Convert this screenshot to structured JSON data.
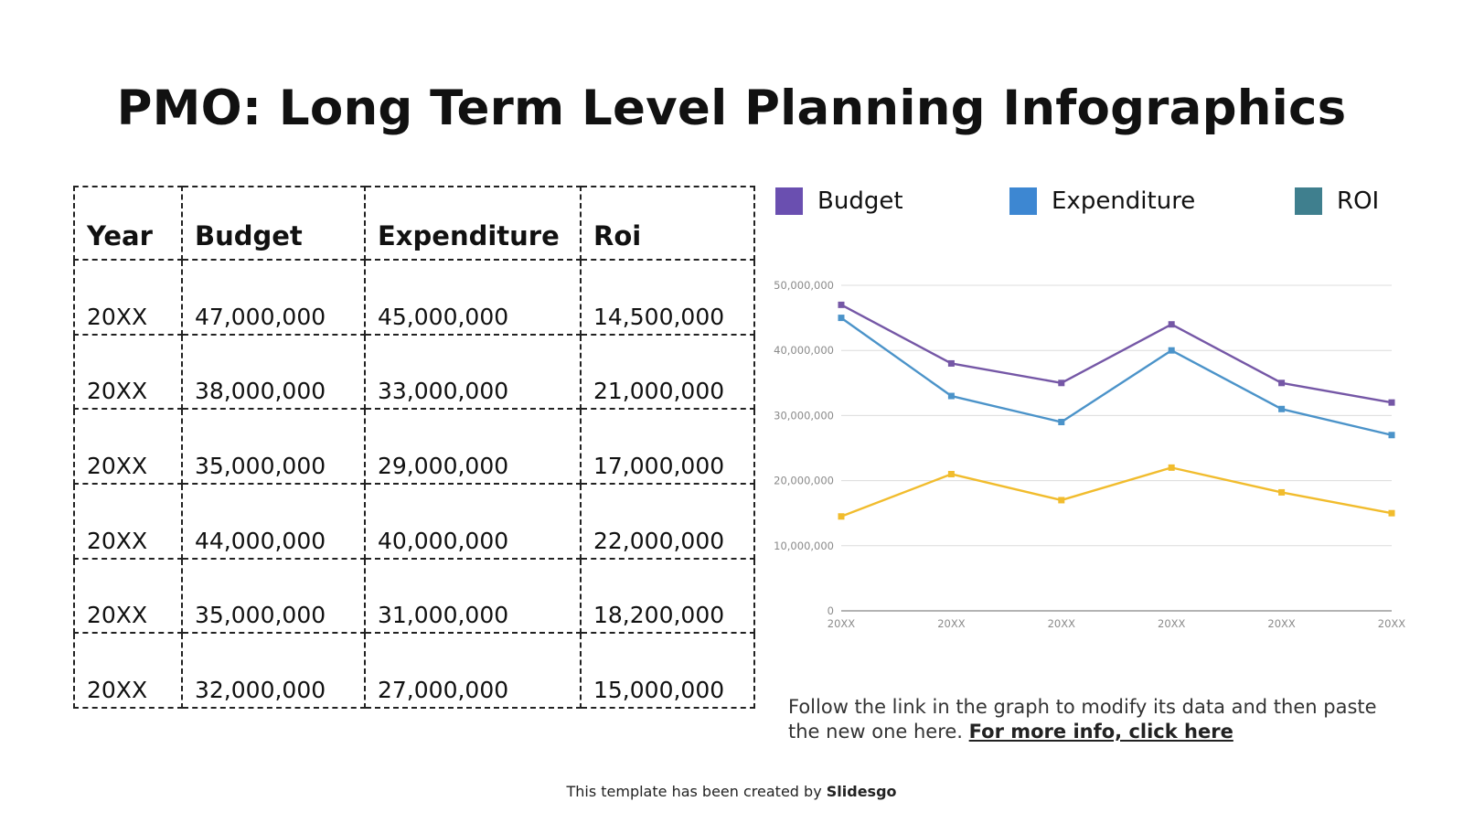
{
  "slide": {
    "title": "PMO: Long Term Level Planning Infographics",
    "note_text": "Follow the link in the graph to modify its data and then paste the new one here.",
    "note_link": "For more info, click here",
    "footer_text": "This template has been created by",
    "footer_brand": "Slidesgo"
  },
  "table": {
    "headers": [
      "Year",
      "Budget",
      "Expenditure",
      "Roi"
    ],
    "rows": [
      [
        "20XX",
        "47,000,000",
        "45,000,000",
        "14,500,000"
      ],
      [
        "20XX",
        "38,000,000",
        "33,000,000",
        "21,000,000"
      ],
      [
        "20XX",
        "35,000,000",
        "29,000,000",
        "17,000,000"
      ],
      [
        "20XX",
        "44,000,000",
        "40,000,000",
        "22,000,000"
      ],
      [
        "20XX",
        "35,000,000",
        "31,000,000",
        "18,200,000"
      ],
      [
        "20XX",
        "32,000,000",
        "27,000,000",
        "15,000,000"
      ]
    ]
  },
  "legend": [
    {
      "label": "Budget",
      "color": "#6a4fb0"
    },
    {
      "label": "Expenditure",
      "color": "#3d87d2"
    },
    {
      "label": "ROI",
      "color": "#3f7f8e"
    }
  ],
  "chart_data": {
    "type": "line",
    "title": "",
    "xlabel": "",
    "ylabel": "",
    "categories": [
      "20XX",
      "20XX",
      "20XX",
      "20XX",
      "20XX",
      "20XX"
    ],
    "y_ticks": [
      "0",
      "10,000,000",
      "20,000,000",
      "30,000,000",
      "40,000,000",
      "50,000,000"
    ],
    "ylim": [
      0,
      50000000
    ],
    "grid": true,
    "legend_position": "top",
    "series": [
      {
        "name": "Budget",
        "color": "#7557a6",
        "values": [
          47000000,
          38000000,
          35000000,
          44000000,
          35000000,
          32000000
        ]
      },
      {
        "name": "Expenditure",
        "color": "#4b93c9",
        "values": [
          45000000,
          33000000,
          29000000,
          40000000,
          31000000,
          27000000
        ]
      },
      {
        "name": "ROI",
        "color": "#f1bc2d",
        "values": [
          14500000,
          21000000,
          17000000,
          22000000,
          18200000,
          15000000
        ]
      }
    ]
  }
}
